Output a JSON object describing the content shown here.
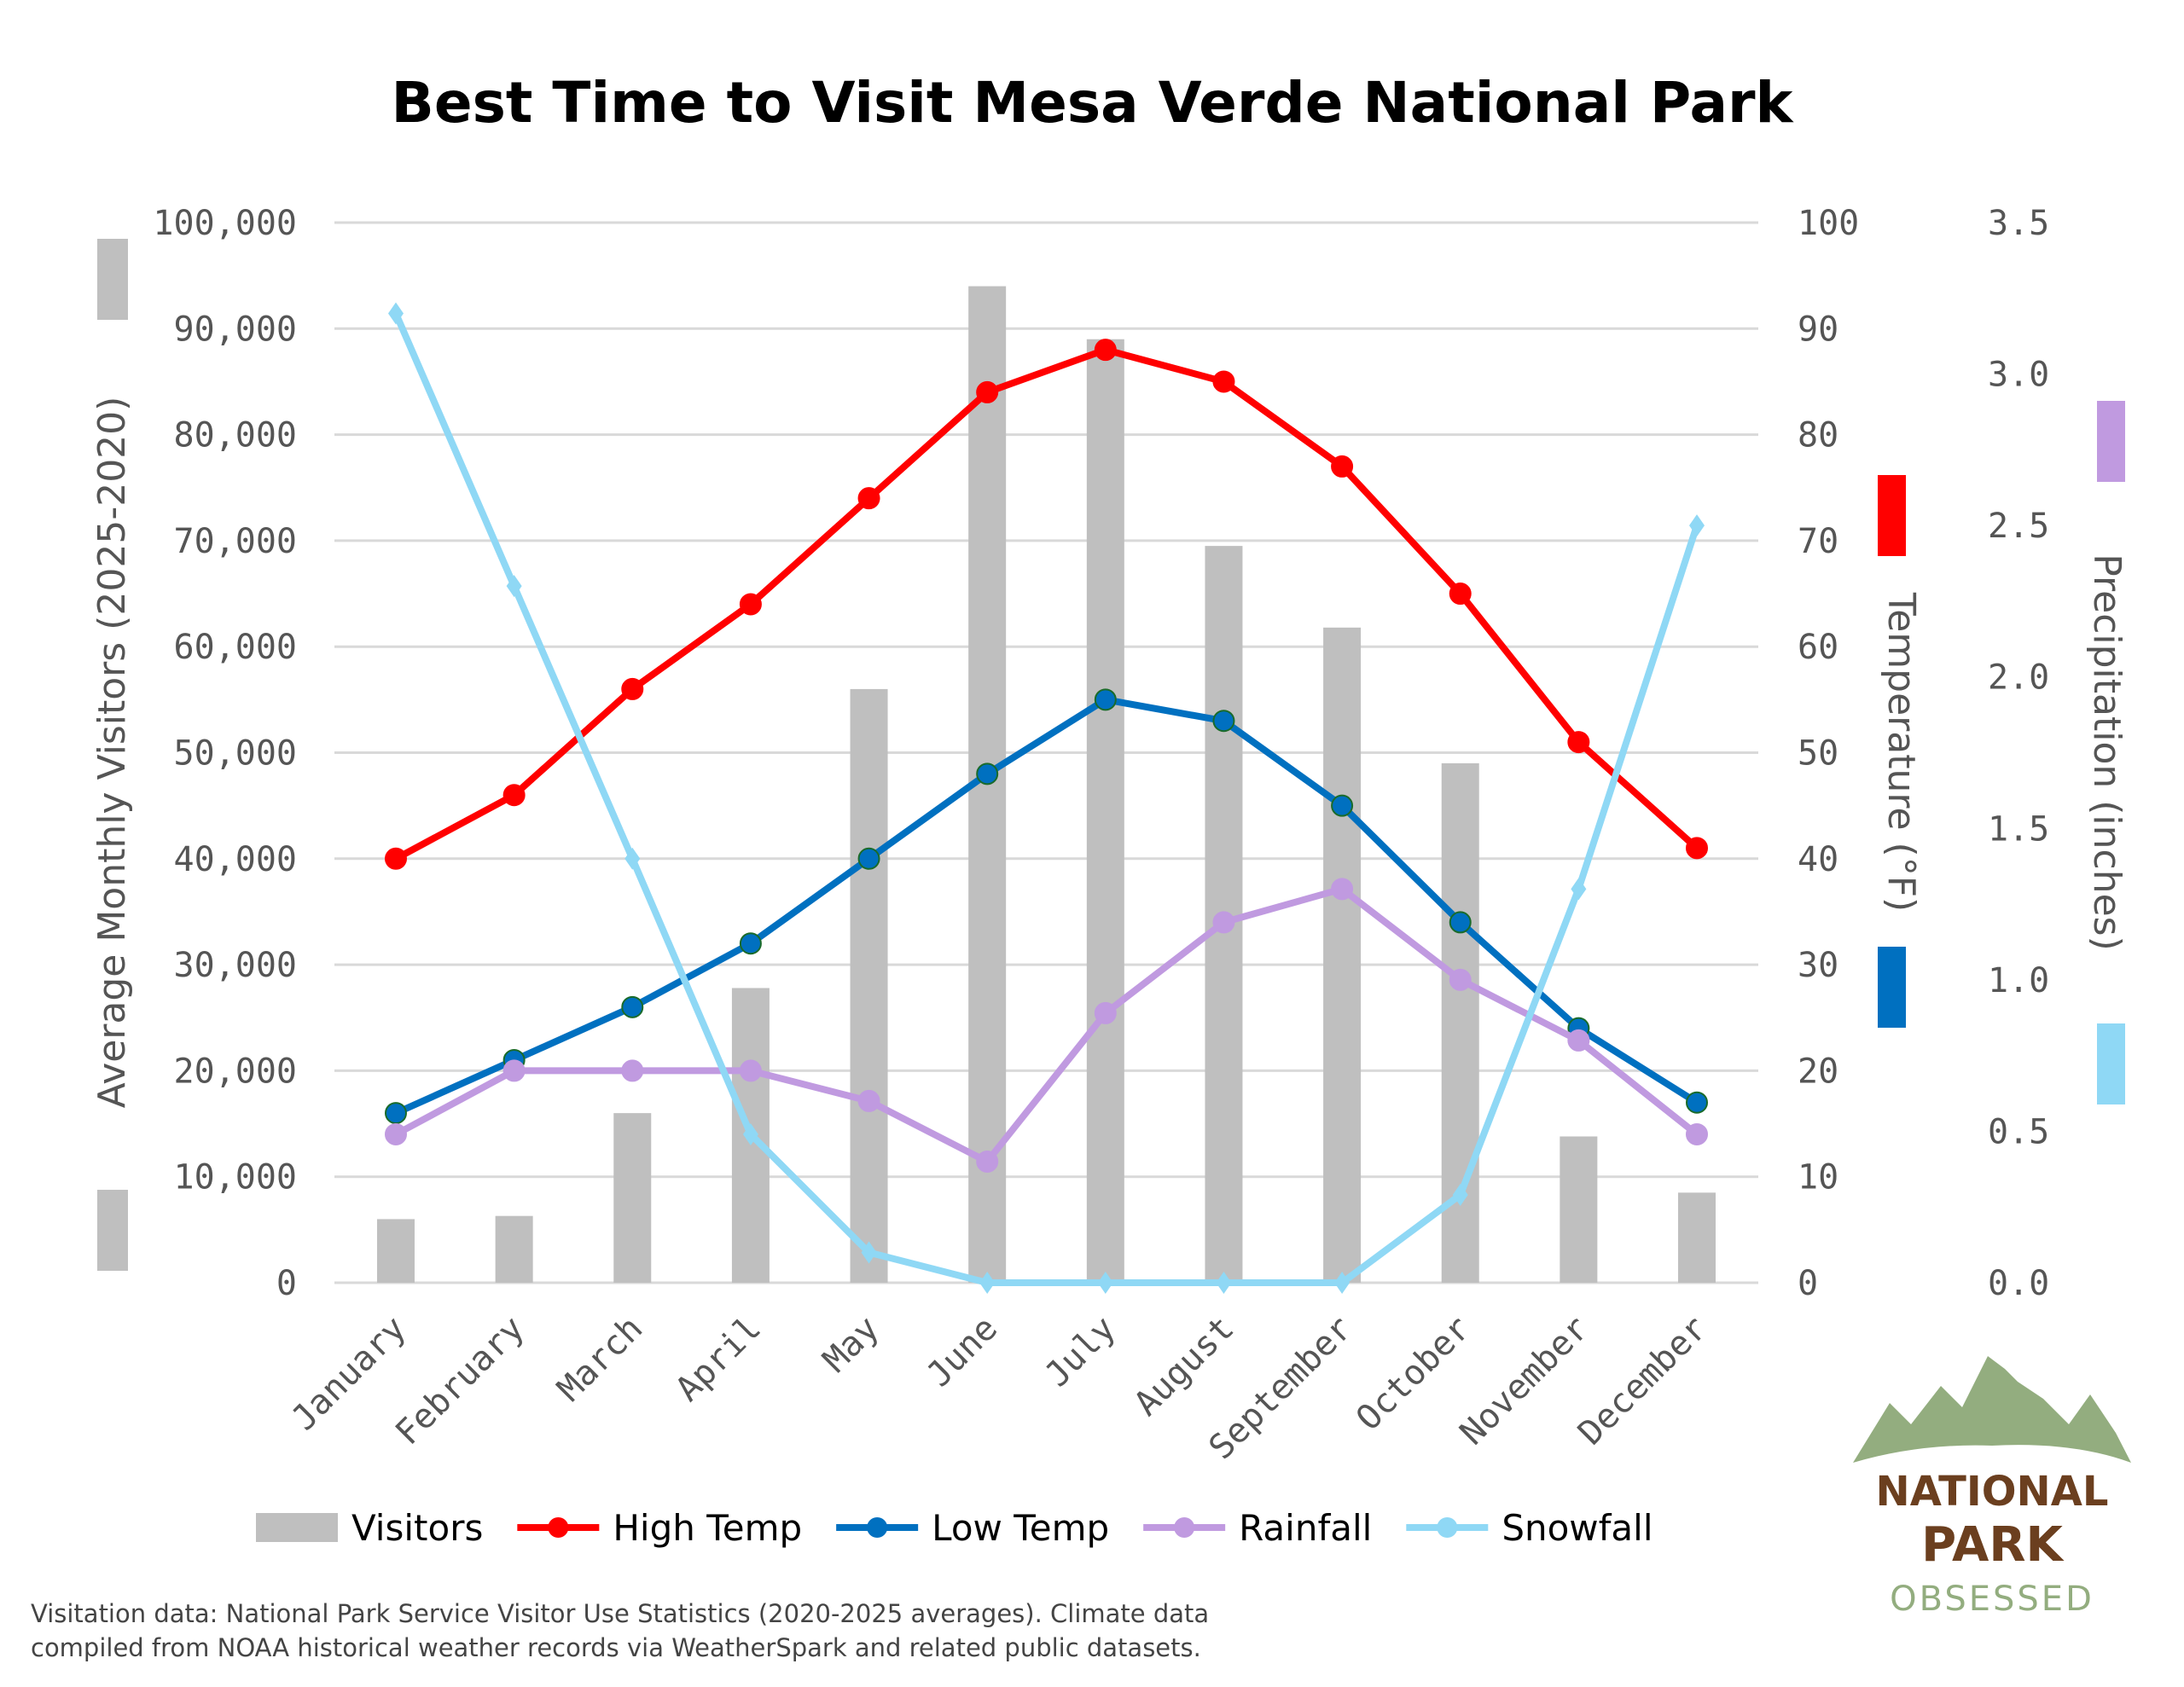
{
  "chart_data": {
    "type": "bar+line",
    "title": "Best Time to Visit Mesa Verde National Park",
    "categories": [
      "January",
      "February",
      "March",
      "April",
      "May",
      "June",
      "July",
      "August",
      "September",
      "October",
      "November",
      "December"
    ],
    "axes": {
      "left": {
        "label": "Average Monthly Visitors (2025-2020)",
        "range": [
          0,
          100000
        ],
        "ticks": [
          "0",
          "10,000",
          "20,000",
          "30,000",
          "40,000",
          "50,000",
          "60,000",
          "70,000",
          "80,000",
          "90,000",
          "100,000"
        ]
      },
      "right_temp": {
        "label": "Temperature (°F)",
        "range": [
          0,
          100
        ],
        "ticks": [
          "0",
          "10",
          "20",
          "30",
          "40",
          "50",
          "60",
          "70",
          "80",
          "90",
          "100"
        ]
      },
      "right_precip": {
        "label": "Precipitation (inches)",
        "range": [
          0,
          3.5
        ],
        "ticks": [
          "0.0",
          "0.5",
          "1.0",
          "1.5",
          "2.0",
          "2.5",
          "3.0",
          "3.5"
        ]
      }
    },
    "grid": true,
    "legend_position": "bottom",
    "series": [
      {
        "name": "Visitors",
        "type": "bar",
        "axis": "left",
        "color": "#bfbfbf",
        "values": [
          6000,
          6300,
          16000,
          27800,
          56000,
          94000,
          89000,
          69500,
          61800,
          49000,
          13800,
          8500
        ]
      },
      {
        "name": "High Temp",
        "type": "line",
        "axis": "right_temp",
        "color": "#ff0000",
        "values": [
          40,
          46,
          56,
          64,
          74,
          84,
          88,
          85,
          77,
          65,
          51,
          41
        ]
      },
      {
        "name": "Low Temp",
        "type": "line",
        "axis": "right_temp",
        "color": "#0070c0",
        "values": [
          16,
          21,
          26,
          32,
          40,
          48,
          55,
          53,
          45,
          34,
          24,
          17
        ]
      },
      {
        "name": "Rainfall",
        "type": "line",
        "axis": "right_precip",
        "color": "#c09ae0",
        "values": [
          0.49,
          0.7,
          0.7,
          0.7,
          0.6,
          0.4,
          0.89,
          1.19,
          1.3,
          1.0,
          0.8,
          0.49
        ]
      },
      {
        "name": "Snowfall",
        "type": "line",
        "axis": "right_precip",
        "color": "#8fd8f5",
        "values": [
          3.2,
          2.3,
          1.4,
          0.49,
          0.1,
          0,
          0,
          0,
          0,
          0.29,
          1.3,
          2.5
        ]
      }
    ]
  },
  "footnote": [
    "Visitation data: National Park Service Visitor Use Statistics (2020-2025 averages). Climate data",
    "compiled from NOAA historical weather records via WeatherSpark and related public datasets."
  ],
  "logo": {
    "line1": "NATIONAL",
    "line2": "PARK",
    "line3": "OBSESSED",
    "colors": {
      "mountains": "#93ad7f",
      "text": "#6b3f1f",
      "sub": "#93ad7f"
    }
  }
}
